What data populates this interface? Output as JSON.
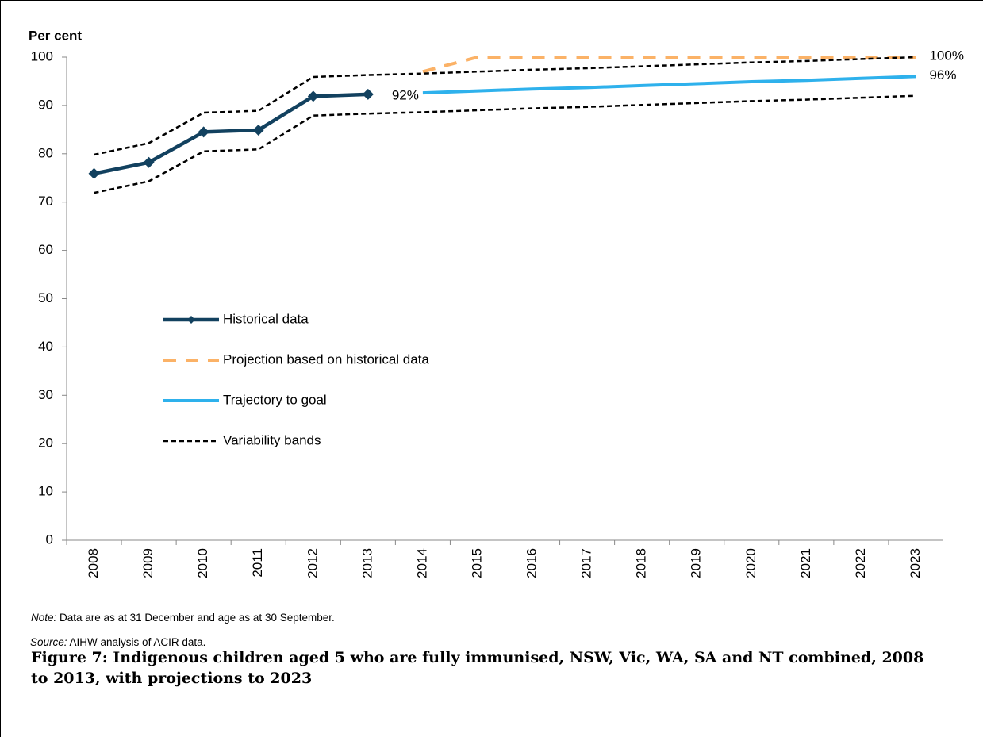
{
  "chart_data": {
    "type": "line",
    "y_label": "Per cent",
    "categories": [
      "2008",
      "2009",
      "2010",
      "2011",
      "2012",
      "2013",
      "2014",
      "2015",
      "2016",
      "2017",
      "2018",
      "2019",
      "2020",
      "2021",
      "2022",
      "2023"
    ],
    "ylim": [
      0,
      100
    ],
    "yticks": [
      0,
      10,
      20,
      30,
      40,
      50,
      60,
      70,
      80,
      90,
      100
    ],
    "series": [
      {
        "name": "Historical data",
        "color": "#12415f",
        "style": "solid-marker",
        "values": [
          75.9,
          78.2,
          84.5,
          84.9,
          91.9,
          92.3,
          null,
          null,
          null,
          null,
          null,
          null,
          null,
          null,
          null,
          null
        ],
        "value_labels": [
          null,
          null,
          null,
          null,
          null,
          "92%",
          null,
          null,
          null,
          null,
          null,
          null,
          null,
          null,
          null,
          null
        ]
      },
      {
        "name": "Projection based on historical data",
        "color": "#fbb267",
        "style": "dashed",
        "values": [
          null,
          null,
          null,
          null,
          null,
          null,
          97,
          100,
          100,
          100,
          100,
          100,
          100,
          100,
          100,
          100
        ],
        "value_labels": [
          null,
          null,
          null,
          null,
          null,
          null,
          null,
          null,
          null,
          null,
          null,
          null,
          null,
          null,
          null,
          "100%"
        ]
      },
      {
        "name": "Trajectory to goal",
        "color": "#2eb1ec",
        "style": "solid",
        "values": [
          null,
          null,
          null,
          null,
          null,
          null,
          92.6,
          93.0,
          93.4,
          93.7,
          94.1,
          94.5,
          94.9,
          95.2,
          95.6,
          96.0
        ],
        "value_labels": [
          null,
          null,
          null,
          null,
          null,
          null,
          null,
          null,
          null,
          null,
          null,
          null,
          null,
          null,
          null,
          "96%"
        ]
      },
      {
        "name": "Variability bands",
        "color": "#000000",
        "style": "band",
        "upper": [
          79.8,
          82.2,
          88.5,
          88.9,
          95.9,
          96.3,
          96.6,
          97.0,
          97.4,
          97.7,
          98.1,
          98.5,
          98.9,
          99.2,
          99.6,
          100.0
        ],
        "lower": [
          71.9,
          74.3,
          80.5,
          80.9,
          87.9,
          88.3,
          88.6,
          89.0,
          89.4,
          89.7,
          90.1,
          90.5,
          90.9,
          91.2,
          91.6,
          92.0
        ]
      }
    ]
  },
  "note": {
    "label": "Note:",
    "text": " Data are as at 31 December and age as at 30 September."
  },
  "source": {
    "label": "Source:",
    "text": " AIHW analysis of ACIR data."
  },
  "caption": "Figure 7: Indigenous children aged 5 who are fully immunised, NSW, Vic, WA, SA and NT combined, 2008 to 2013, with projections to 2023"
}
